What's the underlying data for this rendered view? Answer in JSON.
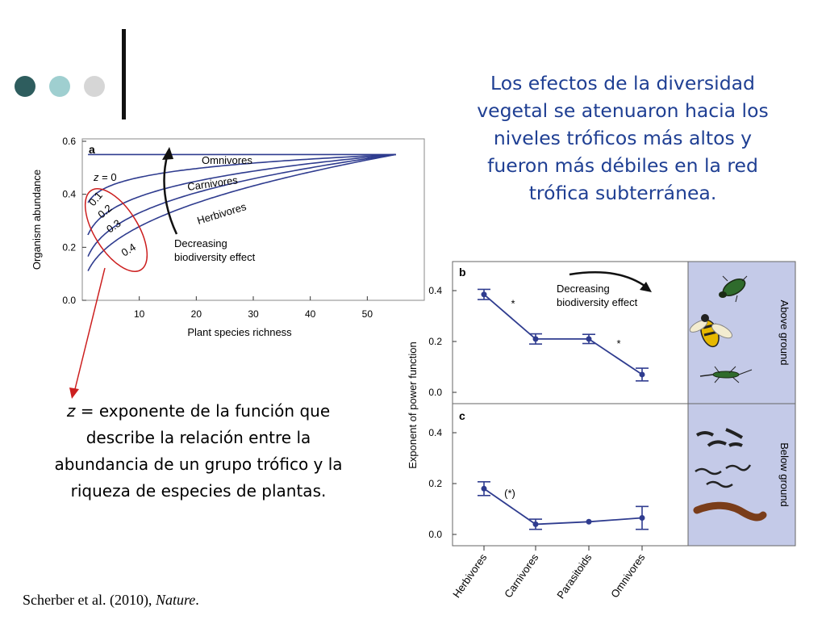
{
  "slide": {
    "title": "Los efectos de la diversidad vegetal se atenuaron hacia los niveles tróficos más altos y fueron más débiles en la red trófica subterránea.",
    "note_var": "z",
    "note_text": " = exponente de la función que describe la relación entre la abundancia de un grupo trófico y la riqueza de especies de plantas.",
    "citation_authors": "Scherber et al. (2010), ",
    "citation_journal": "Nature",
    "citation_end": ".",
    "dot_colors": [
      "#2e5d5e",
      "#9fcfd0",
      "#d6d6d6"
    ],
    "accent_title": "#1f3f93",
    "annotation_color": "#cc1f1f"
  },
  "chart_data": [
    {
      "type": "line",
      "panel_label": "a",
      "xlabel": "Plant species richness",
      "ylabel": "Organism abundance",
      "xlim": [
        0,
        60
      ],
      "ylim": [
        0,
        0.6
      ],
      "x_ticks": [
        10,
        20,
        30,
        40,
        50
      ],
      "y_ticks": [
        "0.0",
        "0.2",
        "0.4",
        "0.6"
      ],
      "curve_end": [
        55,
        0.55
      ],
      "curve_start_x": 1,
      "series": [
        {
          "name": "z = 0",
          "z": 0
        },
        {
          "name": "0.1",
          "z": 0.1
        },
        {
          "name": "0.2",
          "z": 0.2
        },
        {
          "name": "0.3",
          "z": 0.3
        },
        {
          "name": "0.4",
          "z": 0.4
        }
      ],
      "curve_labels": [
        "Omnivores",
        "Carnivores",
        "Herbivores"
      ],
      "z_prefix": "z",
      "z_zero": " = 0",
      "arrow_label": [
        "Decreasing",
        "biodiversity effect"
      ],
      "line_color": "#2f3c8f"
    },
    {
      "type": "line",
      "panel_label": "b",
      "categories": [
        "Herbivores",
        "Carnivores",
        "Parasitoids",
        "Omnivores"
      ],
      "ylabel": "Exponent of power function",
      "ylim": [
        0,
        0.45
      ],
      "y_ticks": [
        "0.0",
        "0.2",
        "0.4"
      ],
      "values": [
        0.385,
        0.21,
        0.21,
        0.07
      ],
      "errors": [
        0.02,
        0.02,
        0.018,
        0.025
      ],
      "significance": [
        "*",
        "",
        "*"
      ],
      "arrow_label": [
        "Decreasing",
        "biodiversity effect"
      ],
      "side_label": "Above ground"
    },
    {
      "type": "line",
      "panel_label": "c",
      "categories": [
        "Herbivores",
        "Carnivores",
        "Parasitoids",
        "Omnivores"
      ],
      "ylim": [
        0,
        0.45
      ],
      "y_ticks": [
        "0.0",
        "0.2",
        "0.4"
      ],
      "values": [
        0.18,
        0.04,
        0.05,
        0.065
      ],
      "errors": [
        0.027,
        0.02,
        0,
        0.045
      ],
      "significance": [
        "(*)",
        "",
        ""
      ],
      "side_label": "Below ground"
    }
  ]
}
